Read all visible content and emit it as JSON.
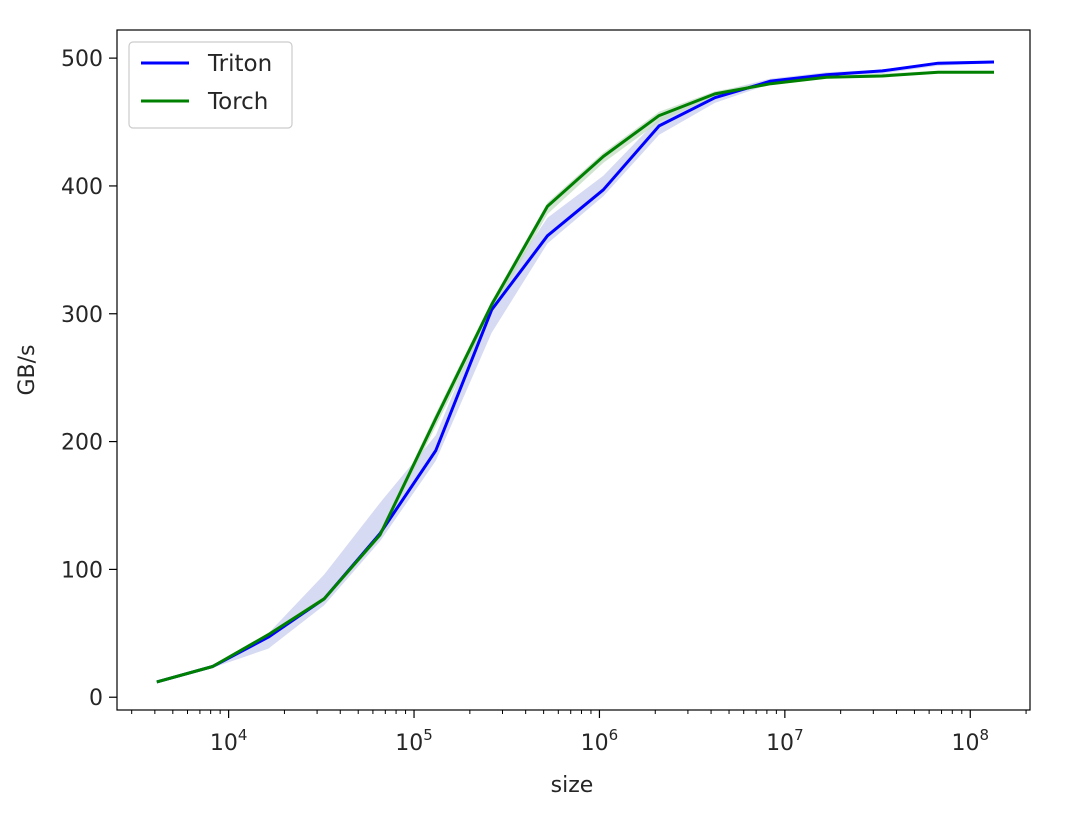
{
  "chart_data": {
    "type": "line",
    "xlabel": "size",
    "ylabel": "GB/s",
    "xscale": "log",
    "xlim": [
      2500,
      210000000
    ],
    "ylim": [
      -10,
      522
    ],
    "yticks": [
      0,
      100,
      200,
      300,
      400,
      500
    ],
    "xticks": [
      {
        "value": 10000,
        "base": "10",
        "exp": "4"
      },
      {
        "value": 100000,
        "base": "10",
        "exp": "5"
      },
      {
        "value": 1000000,
        "base": "10",
        "exp": "6"
      },
      {
        "value": 10000000,
        "base": "10",
        "exp": "7"
      },
      {
        "value": 100000000,
        "base": "10",
        "exp": "8"
      }
    ],
    "legend_placement": "upper-left",
    "grid": false,
    "x": [
      4096,
      8192,
      16384,
      32768,
      65536,
      131072,
      262144,
      524288,
      1048576,
      2097152,
      4194304,
      8388608,
      16777216,
      33554432,
      67108864,
      134217728
    ],
    "series": [
      {
        "name": "Triton",
        "color": "#0000ff",
        "band_color": "#c8cdee",
        "values": [
          12,
          24,
          47,
          77,
          128,
          193,
          303,
          361,
          397,
          447,
          469,
          482,
          487,
          490,
          496,
          497
        ],
        "lower": [
          11,
          23,
          38,
          72,
          122,
          185,
          285,
          355,
          392,
          440,
          465,
          480,
          486,
          488,
          494,
          496
        ],
        "upper": [
          13,
          25,
          50,
          96,
          152,
          205,
          310,
          375,
          408,
          453,
          473,
          484,
          489,
          491,
          497,
          498
        ]
      },
      {
        "name": "Torch",
        "color": "#008000",
        "band_color": "#c3dcc1",
        "values": [
          12,
          24,
          49,
          77,
          127,
          218,
          307,
          384,
          423,
          455,
          472,
          480,
          485,
          486,
          489,
          489
        ],
        "lower": [
          11,
          23,
          47,
          75,
          125,
          212,
          300,
          378,
          418,
          450,
          470,
          479,
          484,
          486,
          488,
          488
        ],
        "upper": [
          13,
          25,
          50,
          79,
          129,
          222,
          310,
          387,
          426,
          458,
          474,
          482,
          486,
          488,
          490,
          490
        ]
      }
    ]
  }
}
